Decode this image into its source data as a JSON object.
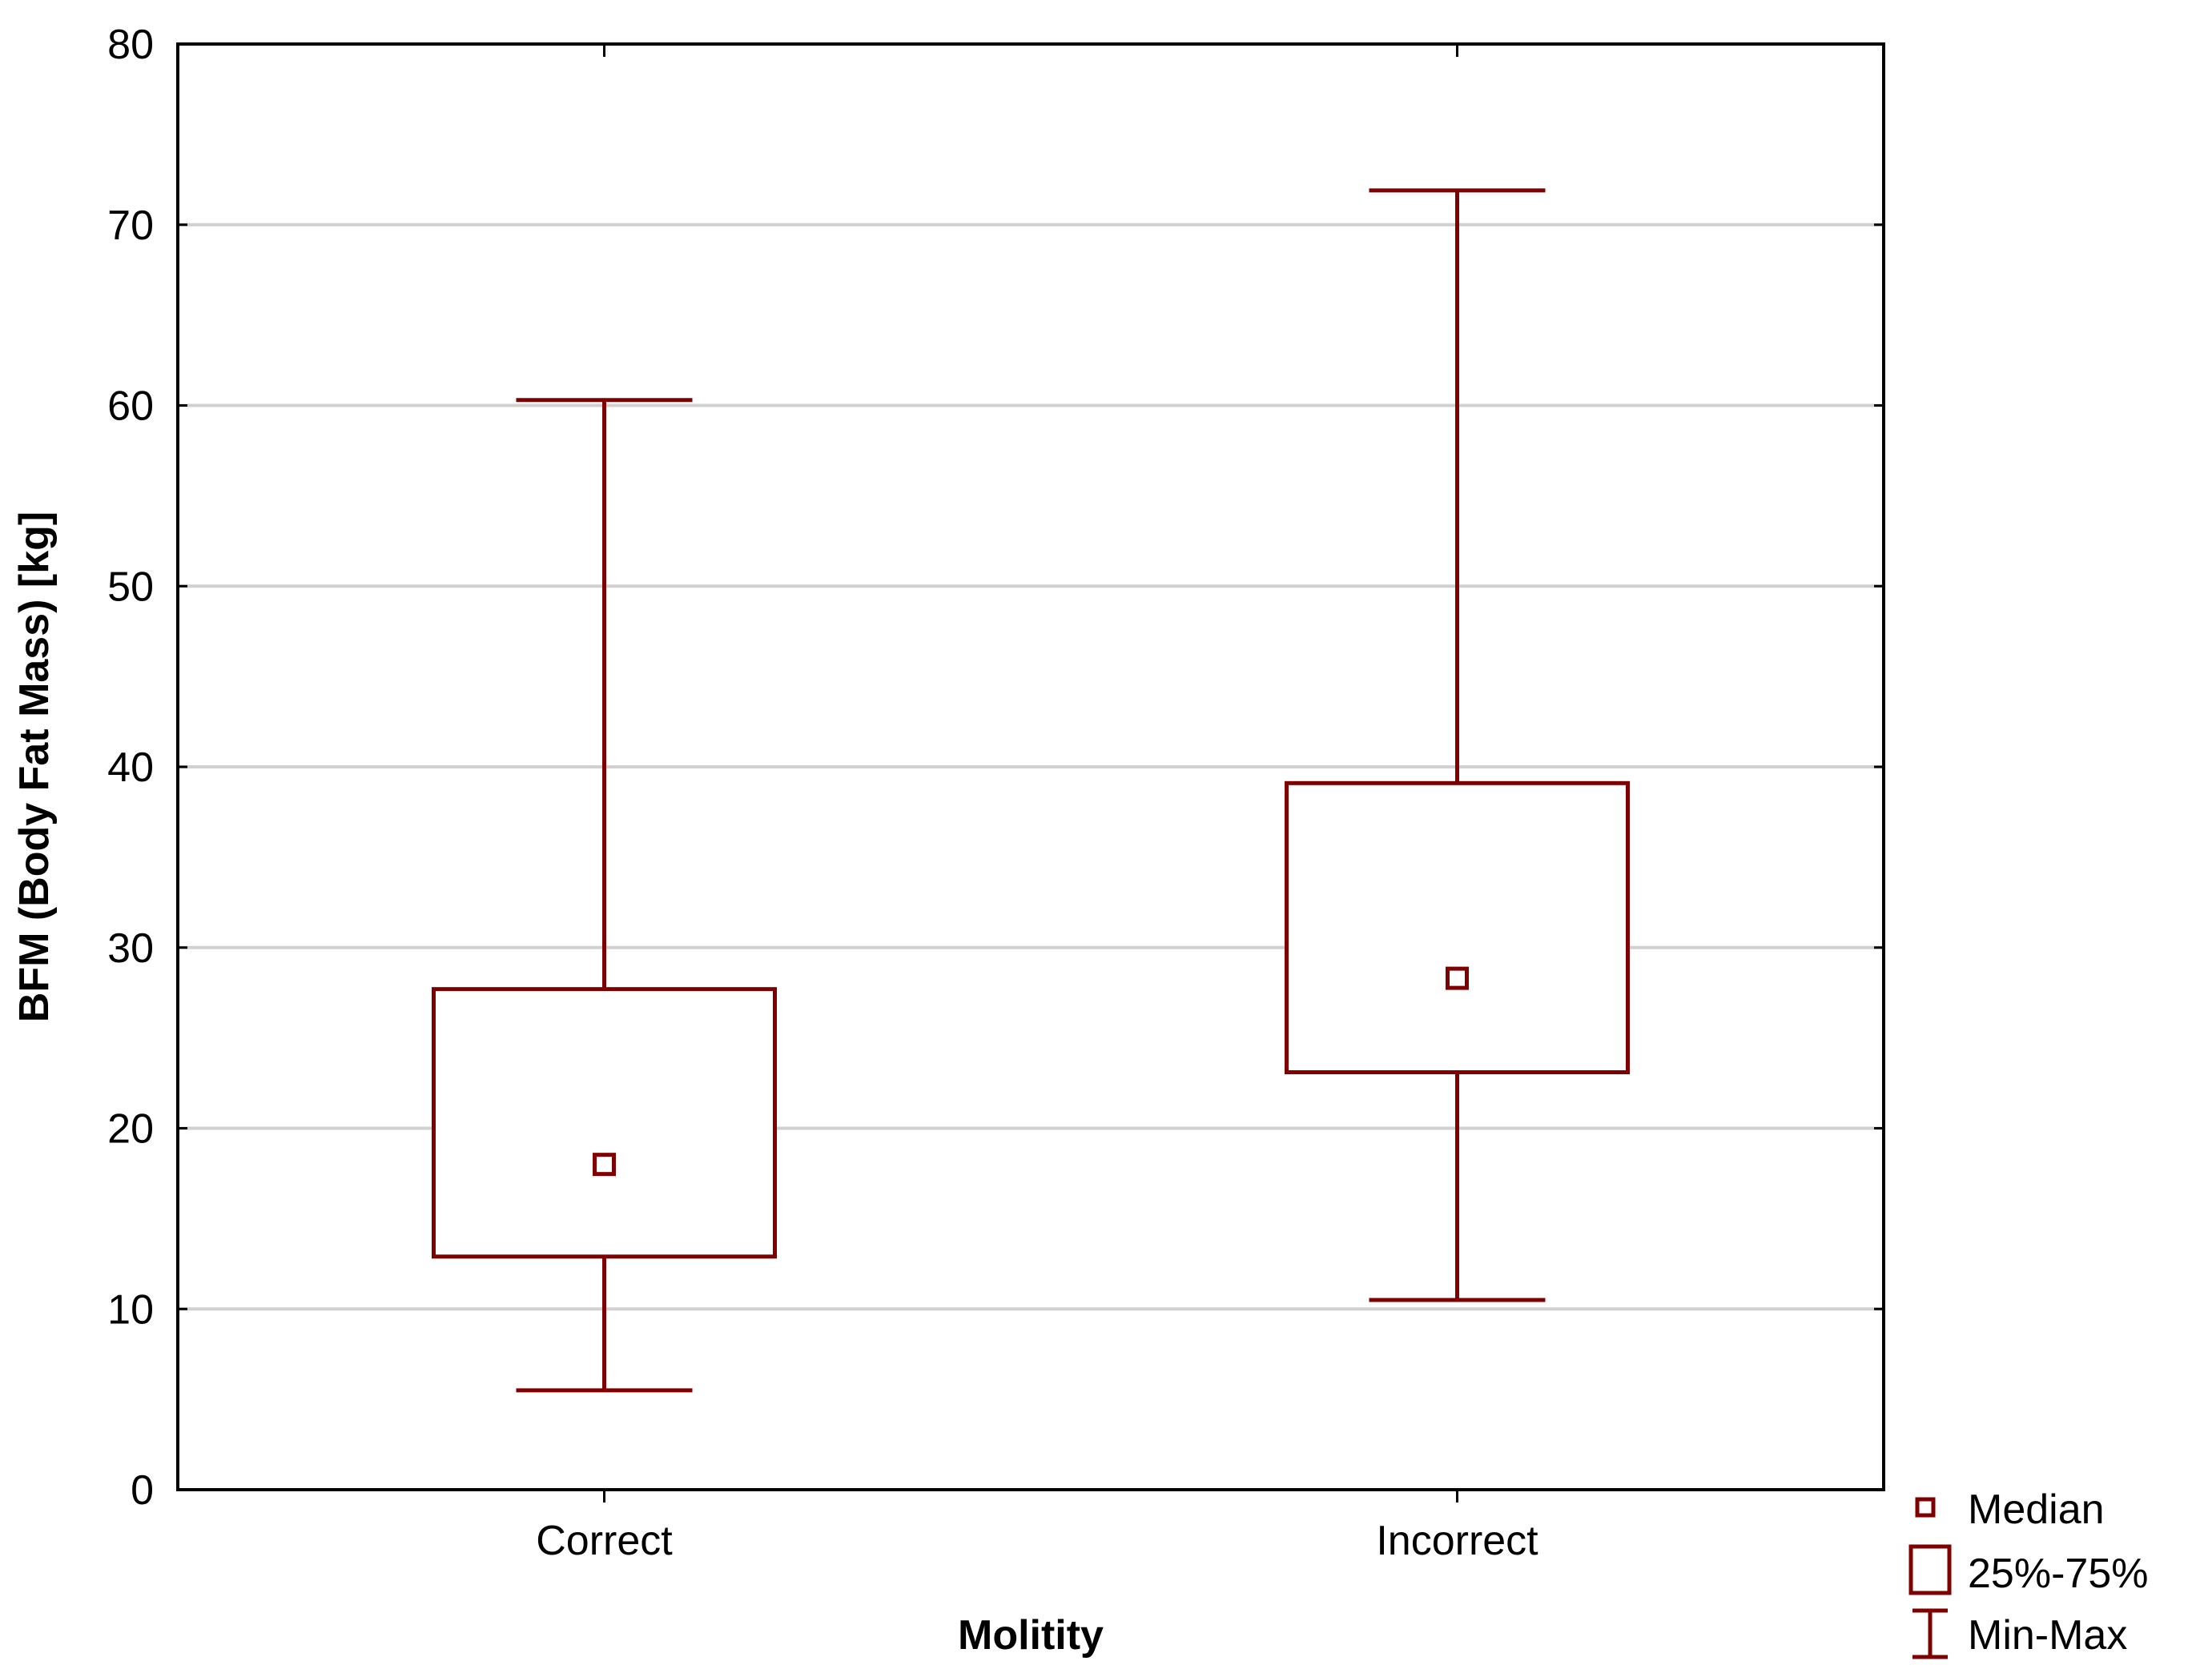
{
  "colors": {
    "series": "#7f0000",
    "grid": "#d0d0d0",
    "axis": "#000000",
    "background": "#ffffff"
  },
  "chart_data": {
    "type": "box",
    "title": "",
    "xlabel": "Molitity",
    "ylabel": "BFM (Body Fat Mass) [kg]",
    "ylim": [
      0,
      80
    ],
    "yticks": [
      0,
      10,
      20,
      30,
      40,
      50,
      60,
      70,
      80
    ],
    "yticks_text": [
      "0",
      "10",
      "20",
      "30",
      "40",
      "50",
      "60",
      "70",
      "80"
    ],
    "grid": true,
    "categories": [
      "Correct",
      "Incorrect"
    ],
    "series": [
      {
        "category": "Correct",
        "min": 5.5,
        "q1": 12.9,
        "median": 18.0,
        "q3": 27.7,
        "max": 60.3
      },
      {
        "category": "Incorrect",
        "min": 10.5,
        "q1": 23.1,
        "median": 28.3,
        "q3": 39.1,
        "max": 71.9
      }
    ],
    "legend": {
      "position": "bottom-right",
      "items": [
        {
          "label": "Median",
          "icon": "small-square-icon"
        },
        {
          "label": "25%-75%",
          "icon": "box-icon"
        },
        {
          "label": "Min-Max",
          "icon": "whisker-icon"
        }
      ]
    }
  }
}
